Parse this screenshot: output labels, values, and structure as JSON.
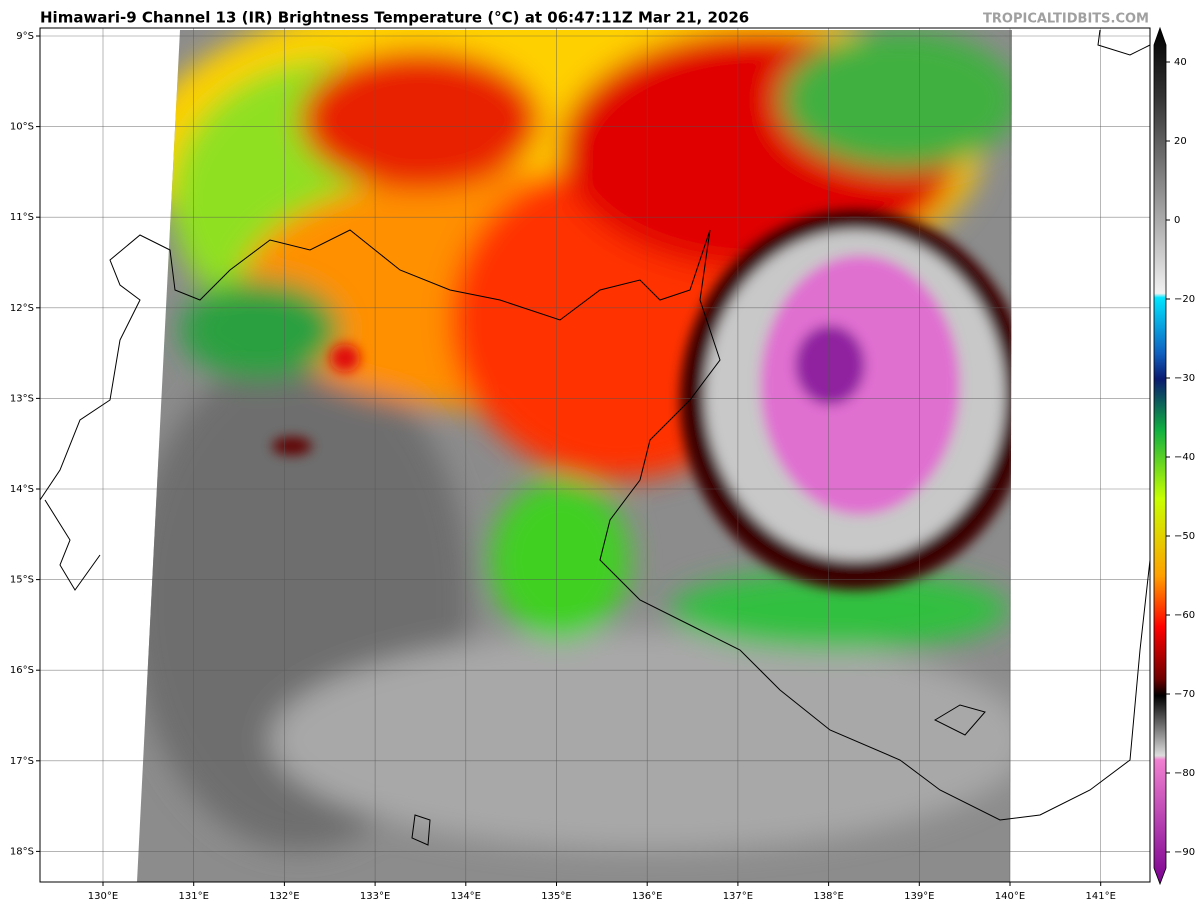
{
  "header": {
    "title": "Himawari-9 Channel 13 (IR) Brightness Temperature (°C) at 06:47:11Z Mar 21, 2026",
    "credit": "TROPICALTIDBITS.COM"
  },
  "map": {
    "lat_labels": [
      "9°S",
      "10°S",
      "11°S",
      "12°S",
      "13°S",
      "14°S",
      "15°S",
      "16°S",
      "17°S",
      "18°S"
    ],
    "lon_labels": [
      "130°E",
      "131°E",
      "132°E",
      "133°E",
      "134°E",
      "135°E",
      "136°E",
      "137°E",
      "138°E",
      "139°E",
      "140°E",
      "141°E"
    ]
  },
  "colorbar": {
    "ticks": [
      "40",
      "20",
      "0",
      "−20",
      "−30",
      "−40",
      "−50",
      "−60",
      "−70",
      "−80",
      "−90"
    ]
  }
}
